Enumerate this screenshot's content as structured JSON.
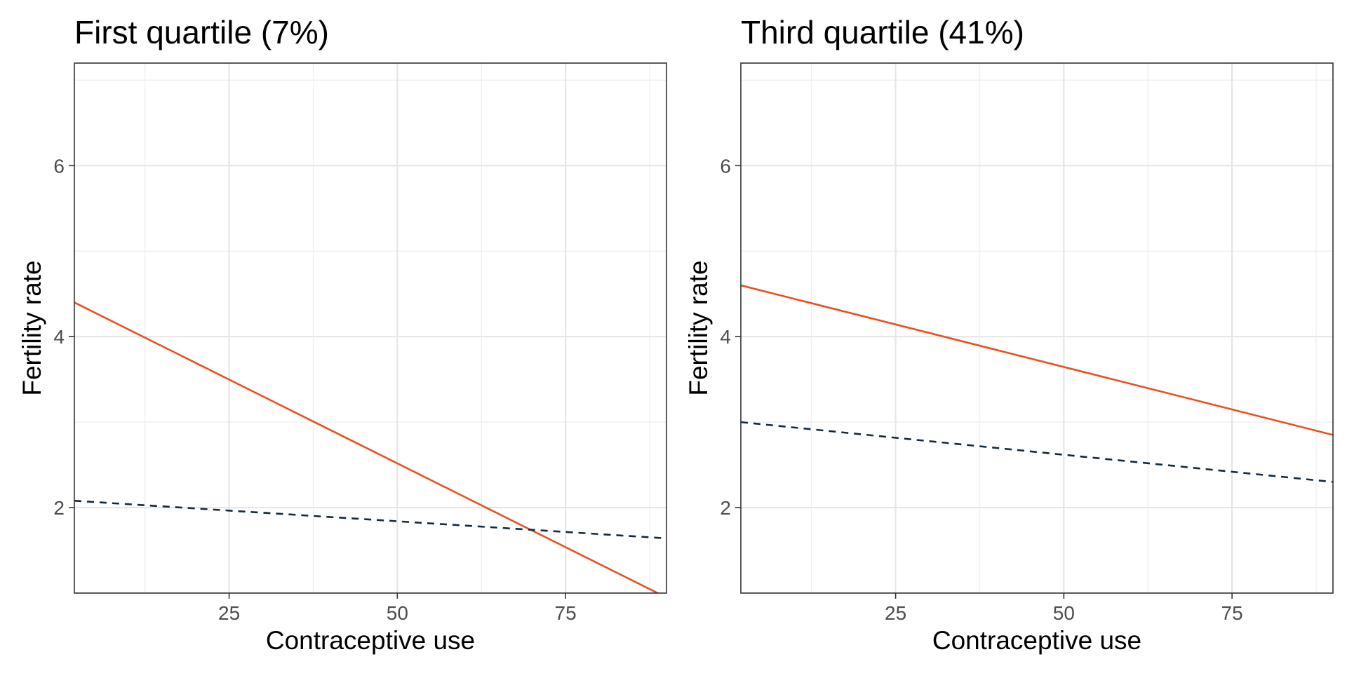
{
  "chart_data": [
    {
      "type": "line",
      "title": "First quartile (7%)",
      "xlabel": "Contraceptive use",
      "ylabel": "Fertility rate",
      "xlim": [
        2,
        90
      ],
      "ylim": [
        1,
        7.2
      ],
      "x_ticks": [
        25,
        50,
        75
      ],
      "y_ticks": [
        2,
        4,
        6
      ],
      "x_minor": [
        12.5,
        37.5,
        62.5,
        87.5
      ],
      "y_minor": [
        1,
        3,
        5,
        7
      ],
      "grid": true,
      "series": [
        {
          "style": "solid",
          "color": "#e8511f",
          "x": [
            2,
            89.2
          ],
          "y": [
            4.4,
            0.98
          ]
        },
        {
          "style": "dashed",
          "color": "#132a3f",
          "x": [
            2,
            90
          ],
          "y": [
            2.08,
            1.64
          ]
        }
      ]
    },
    {
      "type": "line",
      "title": "Third quartile (41%)",
      "xlabel": "Contraceptive use",
      "ylabel": "Fertility rate",
      "xlim": [
        2,
        90
      ],
      "ylim": [
        1,
        7.2
      ],
      "x_ticks": [
        25,
        50,
        75
      ],
      "y_ticks": [
        2,
        4,
        6
      ],
      "x_minor": [
        12.5,
        37.5,
        62.5,
        87.5
      ],
      "y_minor": [
        1,
        3,
        5,
        7
      ],
      "grid": true,
      "series": [
        {
          "style": "solid",
          "color": "#e8511f",
          "x": [
            2,
            90
          ],
          "y": [
            4.6,
            2.85
          ]
        },
        {
          "style": "dashed",
          "color": "#132a3f",
          "x": [
            2,
            90
          ],
          "y": [
            3.0,
            2.3
          ]
        }
      ]
    }
  ]
}
